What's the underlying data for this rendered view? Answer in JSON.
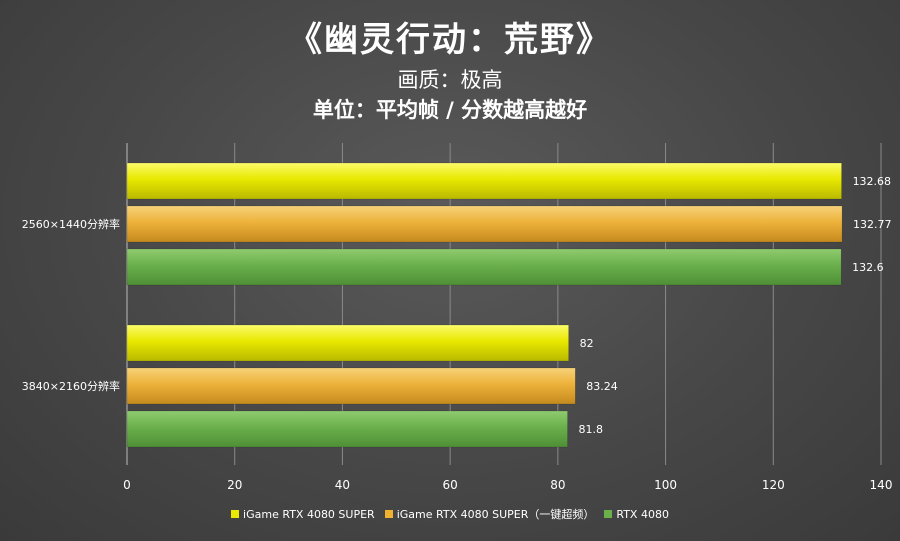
{
  "title": "《幽灵行动：荒野》",
  "subtitle": "画质：极高",
  "subtitle2": "单位：平均帧 / 分数越高越好",
  "chart_data": {
    "type": "bar",
    "orientation": "horizontal",
    "categories": [
      "2560×1440分辨率",
      "3840×2160分辨率"
    ],
    "series": [
      {
        "name": "iGame RTX 4080 SUPER",
        "color": "#e8e800",
        "values": [
          132.68,
          82
        ]
      },
      {
        "name": "iGame RTX 4080 SUPER（一键超频）",
        "color": "#f0b030",
        "values": [
          132.77,
          83.24
        ]
      },
      {
        "name": "RTX 4080",
        "color": "#6ab04c",
        "values": [
          132.6,
          81.8
        ]
      }
    ],
    "value_labels": [
      [
        "132.68",
        "82"
      ],
      [
        "132.77",
        "83.24"
      ],
      [
        "132.6",
        "81.8"
      ]
    ],
    "xlim": [
      0,
      140
    ],
    "xticks": [
      "0",
      "20",
      "40",
      "60",
      "80",
      "100",
      "120",
      "140"
    ],
    "grid": true,
    "legend_position": "bottom"
  }
}
